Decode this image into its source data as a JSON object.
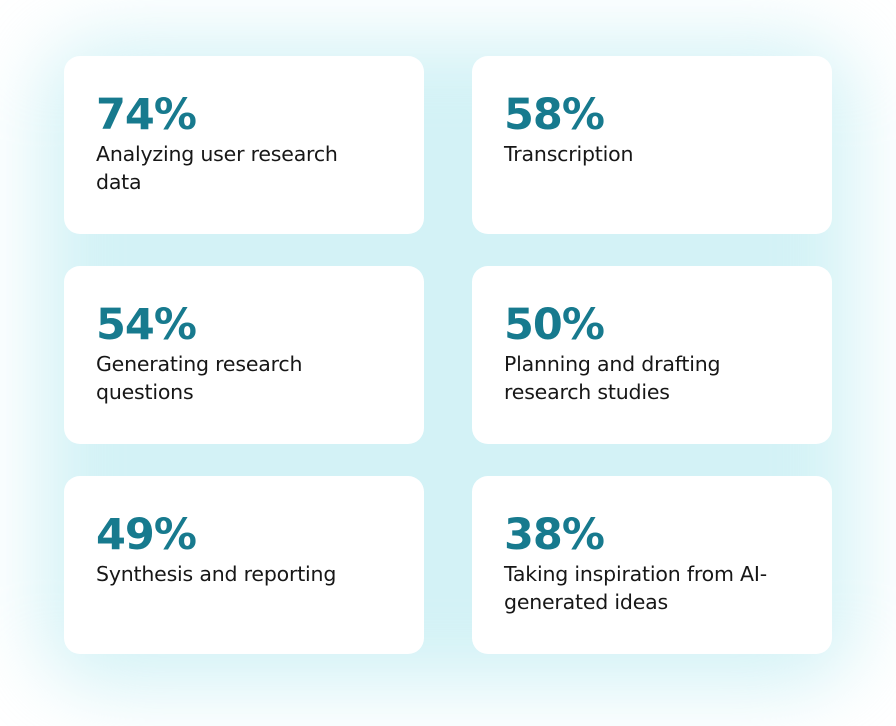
{
  "stats": [
    {
      "percent": "74%",
      "label": "Analyzing user research data"
    },
    {
      "percent": "58%",
      "label": "Transcription"
    },
    {
      "percent": "54%",
      "label": "Generating research questions"
    },
    {
      "percent": "50%",
      "label": "Planning and drafting research studies"
    },
    {
      "percent": "49%",
      "label": "Synthesis and reporting"
    },
    {
      "percent": "38%",
      "label": "Taking inspiration from AI-generated ideas"
    }
  ],
  "colors": {
    "accent": "#177a8e",
    "text": "#171717",
    "glow": "#afe8ee",
    "card": "#ffffff"
  }
}
